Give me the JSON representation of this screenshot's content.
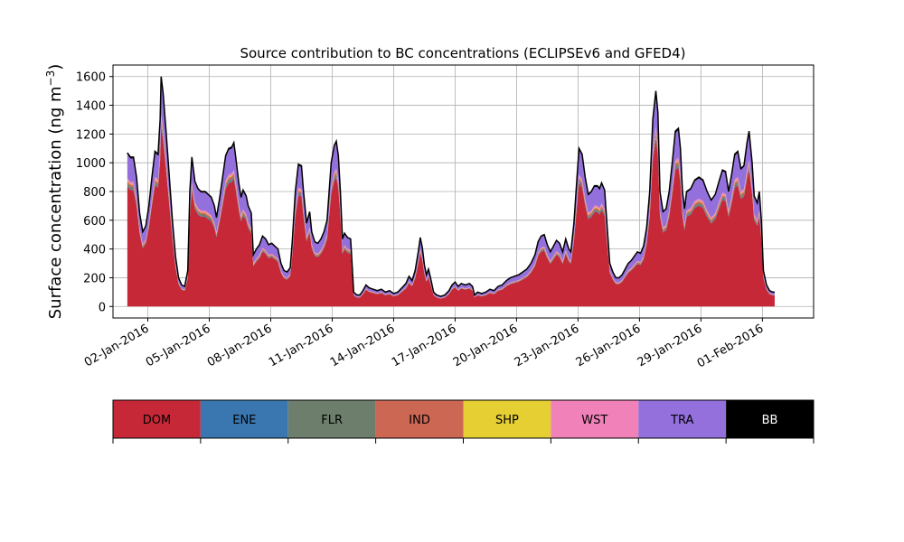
{
  "chart_data": {
    "type": "area",
    "stacked": true,
    "title": "Source contribution to BC concentrations (ECLIPSEv6 and GFED4)",
    "ylabel": "Surface concentration (ng m",
    "ylabel_sup": "−3",
    "ylabel_close": ")",
    "xlabel": "",
    "ylim": [
      -80,
      1680
    ],
    "xlim": [
      -0.7,
      33.5
    ],
    "yticks": [
      0,
      200,
      400,
      600,
      800,
      1000,
      1200,
      1400,
      1600
    ],
    "xticks": [
      {
        "x": 1,
        "label": "02-Jan-2016"
      },
      {
        "x": 4,
        "label": "05-Jan-2016"
      },
      {
        "x": 7,
        "label": "08-Jan-2016"
      },
      {
        "x": 10,
        "label": "11-Jan-2016"
      },
      {
        "x": 13,
        "label": "14-Jan-2016"
      },
      {
        "x": 16,
        "label": "17-Jan-2016"
      },
      {
        "x": 19,
        "label": "20-Jan-2016"
      },
      {
        "x": 22,
        "label": "23-Jan-2016"
      },
      {
        "x": 25,
        "label": "26-Jan-2016"
      },
      {
        "x": 28,
        "label": "29-Jan-2016"
      },
      {
        "x": 31,
        "label": "01-Feb-2016"
      }
    ],
    "x_unit": "days since 01-Jan-2016",
    "grid": true,
    "total": [
      [
        0.0,
        1070
      ],
      [
        0.15,
        1040
      ],
      [
        0.3,
        1040
      ],
      [
        0.45,
        900
      ],
      [
        0.6,
        650
      ],
      [
        0.75,
        520
      ],
      [
        0.9,
        560
      ],
      [
        1.05,
        700
      ],
      [
        1.2,
        900
      ],
      [
        1.35,
        1080
      ],
      [
        1.5,
        1060
      ],
      [
        1.6,
        1300
      ],
      [
        1.65,
        1600
      ],
      [
        1.75,
        1480
      ],
      [
        1.9,
        1200
      ],
      [
        2.05,
        900
      ],
      [
        2.2,
        600
      ],
      [
        2.35,
        350
      ],
      [
        2.5,
        200
      ],
      [
        2.65,
        150
      ],
      [
        2.8,
        140
      ],
      [
        2.95,
        250
      ],
      [
        3.05,
        800
      ],
      [
        3.15,
        1040
      ],
      [
        3.3,
        870
      ],
      [
        3.45,
        820
      ],
      [
        3.6,
        800
      ],
      [
        3.8,
        800
      ],
      [
        3.95,
        780
      ],
      [
        4.1,
        760
      ],
      [
        4.25,
        700
      ],
      [
        4.35,
        620
      ],
      [
        4.5,
        750
      ],
      [
        4.65,
        900
      ],
      [
        4.8,
        1050
      ],
      [
        4.95,
        1100
      ],
      [
        5.1,
        1110
      ],
      [
        5.2,
        1140
      ],
      [
        5.3,
        1030
      ],
      [
        5.45,
        850
      ],
      [
        5.55,
        760
      ],
      [
        5.65,
        810
      ],
      [
        5.8,
        770
      ],
      [
        5.9,
        700
      ],
      [
        6.05,
        650
      ],
      [
        6.15,
        360
      ],
      [
        6.3,
        400
      ],
      [
        6.45,
        430
      ],
      [
        6.6,
        490
      ],
      [
        6.75,
        470
      ],
      [
        6.9,
        430
      ],
      [
        7.05,
        440
      ],
      [
        7.2,
        420
      ],
      [
        7.35,
        400
      ],
      [
        7.5,
        300
      ],
      [
        7.65,
        250
      ],
      [
        7.8,
        240
      ],
      [
        7.95,
        270
      ],
      [
        8.05,
        450
      ],
      [
        8.2,
        800
      ],
      [
        8.35,
        990
      ],
      [
        8.5,
        980
      ],
      [
        8.6,
        800
      ],
      [
        8.75,
        580
      ],
      [
        8.9,
        660
      ],
      [
        9.0,
        520
      ],
      [
        9.15,
        450
      ],
      [
        9.3,
        440
      ],
      [
        9.45,
        470
      ],
      [
        9.6,
        520
      ],
      [
        9.75,
        600
      ],
      [
        9.85,
        800
      ],
      [
        9.95,
        1000
      ],
      [
        10.1,
        1120
      ],
      [
        10.2,
        1150
      ],
      [
        10.3,
        1050
      ],
      [
        10.4,
        800
      ],
      [
        10.5,
        470
      ],
      [
        10.6,
        510
      ],
      [
        10.75,
        480
      ],
      [
        10.9,
        470
      ],
      [
        11.05,
        100
      ],
      [
        11.2,
        80
      ],
      [
        11.35,
        80
      ],
      [
        11.5,
        110
      ],
      [
        11.65,
        150
      ],
      [
        11.8,
        130
      ],
      [
        12.0,
        120
      ],
      [
        12.2,
        110
      ],
      [
        12.4,
        120
      ],
      [
        12.6,
        100
      ],
      [
        12.8,
        110
      ],
      [
        13.0,
        90
      ],
      [
        13.2,
        100
      ],
      [
        13.4,
        130
      ],
      [
        13.6,
        160
      ],
      [
        13.75,
        210
      ],
      [
        13.9,
        180
      ],
      [
        14.05,
        250
      ],
      [
        14.2,
        380
      ],
      [
        14.3,
        480
      ],
      [
        14.4,
        410
      ],
      [
        14.5,
        290
      ],
      [
        14.6,
        220
      ],
      [
        14.7,
        260
      ],
      [
        14.8,
        200
      ],
      [
        14.95,
        100
      ],
      [
        15.1,
        80
      ],
      [
        15.3,
        70
      ],
      [
        15.5,
        80
      ],
      [
        15.7,
        110
      ],
      [
        15.85,
        150
      ],
      [
        16.0,
        170
      ],
      [
        16.15,
        140
      ],
      [
        16.3,
        160
      ],
      [
        16.5,
        150
      ],
      [
        16.7,
        160
      ],
      [
        16.85,
        140
      ],
      [
        16.95,
        80
      ],
      [
        17.1,
        100
      ],
      [
        17.3,
        90
      ],
      [
        17.5,
        100
      ],
      [
        17.7,
        120
      ],
      [
        17.9,
        110
      ],
      [
        18.1,
        140
      ],
      [
        18.3,
        150
      ],
      [
        18.5,
        180
      ],
      [
        18.7,
        200
      ],
      [
        18.9,
        210
      ],
      [
        19.1,
        220
      ],
      [
        19.3,
        240
      ],
      [
        19.5,
        260
      ],
      [
        19.7,
        300
      ],
      [
        19.9,
        360
      ],
      [
        20.05,
        450
      ],
      [
        20.2,
        490
      ],
      [
        20.35,
        500
      ],
      [
        20.5,
        430
      ],
      [
        20.65,
        380
      ],
      [
        20.8,
        420
      ],
      [
        20.95,
        460
      ],
      [
        21.1,
        440
      ],
      [
        21.25,
        380
      ],
      [
        21.4,
        470
      ],
      [
        21.55,
        400
      ],
      [
        21.65,
        380
      ],
      [
        21.8,
        580
      ],
      [
        21.95,
        900
      ],
      [
        22.05,
        1100
      ],
      [
        22.2,
        1060
      ],
      [
        22.35,
        900
      ],
      [
        22.5,
        780
      ],
      [
        22.65,
        800
      ],
      [
        22.8,
        840
      ],
      [
        22.95,
        840
      ],
      [
        23.05,
        820
      ],
      [
        23.15,
        860
      ],
      [
        23.3,
        810
      ],
      [
        23.4,
        600
      ],
      [
        23.55,
        300
      ],
      [
        23.7,
        240
      ],
      [
        23.85,
        200
      ],
      [
        24.0,
        200
      ],
      [
        24.15,
        220
      ],
      [
        24.3,
        260
      ],
      [
        24.45,
        300
      ],
      [
        24.6,
        320
      ],
      [
        24.75,
        350
      ],
      [
        24.9,
        380
      ],
      [
        25.05,
        370
      ],
      [
        25.2,
        420
      ],
      [
        25.35,
        550
      ],
      [
        25.5,
        800
      ],
      [
        25.65,
        1300
      ],
      [
        25.8,
        1500
      ],
      [
        25.9,
        1350
      ],
      [
        26.0,
        800
      ],
      [
        26.15,
        660
      ],
      [
        26.3,
        680
      ],
      [
        26.45,
        800
      ],
      [
        26.6,
        1000
      ],
      [
        26.75,
        1220
      ],
      [
        26.9,
        1240
      ],
      [
        27.0,
        1100
      ],
      [
        27.1,
        800
      ],
      [
        27.2,
        680
      ],
      [
        27.3,
        800
      ],
      [
        27.5,
        820
      ],
      [
        27.7,
        880
      ],
      [
        27.9,
        900
      ],
      [
        28.1,
        880
      ],
      [
        28.3,
        800
      ],
      [
        28.5,
        740
      ],
      [
        28.7,
        780
      ],
      [
        28.9,
        880
      ],
      [
        29.05,
        950
      ],
      [
        29.2,
        940
      ],
      [
        29.35,
        800
      ],
      [
        29.5,
        920
      ],
      [
        29.65,
        1060
      ],
      [
        29.8,
        1080
      ],
      [
        29.95,
        960
      ],
      [
        30.1,
        980
      ],
      [
        30.25,
        1140
      ],
      [
        30.35,
        1220
      ],
      [
        30.5,
        1000
      ],
      [
        30.6,
        770
      ],
      [
        30.75,
        720
      ],
      [
        30.85,
        800
      ],
      [
        30.95,
        600
      ],
      [
        31.05,
        250
      ],
      [
        31.2,
        150
      ],
      [
        31.35,
        110
      ],
      [
        31.5,
        100
      ],
      [
        31.6,
        100
      ]
    ],
    "series": [
      {
        "name": "DOM",
        "color": "#c62837",
        "fraction": 0.78
      },
      {
        "name": "ENE",
        "color": "#3a77b0",
        "fraction": 0.005
      },
      {
        "name": "FLR",
        "color": "#6d7e6d",
        "fraction": 0.015
      },
      {
        "name": "IND",
        "color": "#cc6754",
        "fraction": 0.015
      },
      {
        "name": "SHP",
        "color": "#e6cf33",
        "fraction": 0.005
      },
      {
        "name": "WST",
        "color": "#f081b9",
        "fraction": 0.015
      },
      {
        "name": "TRA",
        "color": "#9370db",
        "fraction": 0.155
      },
      {
        "name": "BB",
        "color": "#000000",
        "fraction": 0.01
      }
    ],
    "legend_placement": "bottom"
  }
}
